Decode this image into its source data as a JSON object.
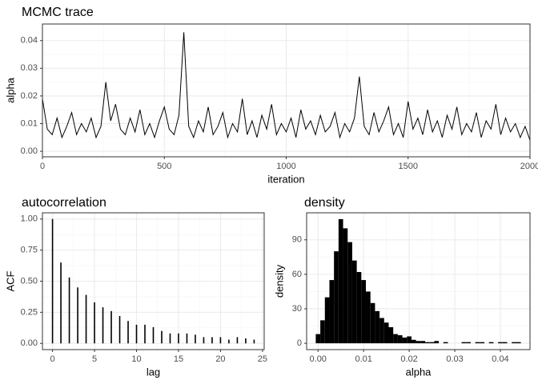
{
  "chart_data": [
    {
      "type": "line",
      "title": "MCMC trace",
      "x_label": "iteration",
      "y_label": "alpha",
      "color": "#000000",
      "grid": true,
      "x": [
        0,
        20,
        40,
        60,
        80,
        100,
        120,
        140,
        160,
        180,
        200,
        220,
        240,
        260,
        280,
        300,
        320,
        340,
        360,
        380,
        400,
        420,
        440,
        460,
        480,
        500,
        520,
        540,
        560,
        580,
        600,
        620,
        640,
        660,
        680,
        700,
        720,
        740,
        760,
        780,
        800,
        820,
        840,
        860,
        880,
        900,
        920,
        940,
        960,
        980,
        1000,
        1020,
        1040,
        1060,
        1080,
        1100,
        1120,
        1140,
        1160,
        1180,
        1200,
        1220,
        1240,
        1260,
        1280,
        1300,
        1320,
        1340,
        1360,
        1380,
        1400,
        1420,
        1440,
        1460,
        1480,
        1500,
        1520,
        1540,
        1560,
        1580,
        1600,
        1620,
        1640,
        1660,
        1680,
        1700,
        1720,
        1740,
        1760,
        1780,
        1800,
        1820,
        1840,
        1860,
        1880,
        1900,
        1920,
        1940,
        1960,
        1980,
        2000
      ],
      "values": [
        0.019,
        0.008,
        0.006,
        0.012,
        0.005,
        0.009,
        0.014,
        0.006,
        0.01,
        0.007,
        0.012,
        0.005,
        0.009,
        0.025,
        0.011,
        0.017,
        0.008,
        0.006,
        0.012,
        0.007,
        0.015,
        0.006,
        0.01,
        0.005,
        0.011,
        0.016,
        0.008,
        0.006,
        0.013,
        0.043,
        0.009,
        0.005,
        0.011,
        0.007,
        0.016,
        0.006,
        0.009,
        0.014,
        0.005,
        0.01,
        0.007,
        0.019,
        0.006,
        0.011,
        0.005,
        0.013,
        0.008,
        0.017,
        0.006,
        0.01,
        0.007,
        0.012,
        0.005,
        0.015,
        0.008,
        0.011,
        0.006,
        0.013,
        0.007,
        0.009,
        0.014,
        0.005,
        0.01,
        0.007,
        0.012,
        0.027,
        0.009,
        0.006,
        0.014,
        0.007,
        0.011,
        0.016,
        0.006,
        0.01,
        0.005,
        0.018,
        0.008,
        0.012,
        0.006,
        0.015,
        0.007,
        0.011,
        0.005,
        0.013,
        0.008,
        0.016,
        0.006,
        0.01,
        0.007,
        0.014,
        0.005,
        0.011,
        0.008,
        0.017,
        0.006,
        0.012,
        0.007,
        0.01,
        0.005,
        0.009,
        0.004
      ],
      "xlim": [
        0,
        2000
      ],
      "xticks": [
        0,
        500,
        1000,
        1500,
        2000
      ],
      "ylim": [
        -0.002,
        0.046
      ],
      "yticks": [
        {
          "value": 0,
          "label": "0.00"
        },
        {
          "value": 0.01,
          "label": "0.01"
        },
        {
          "value": 0.02,
          "label": "0.02"
        },
        {
          "value": 0.03,
          "label": "0.03"
        },
        {
          "value": 0.04,
          "label": "0.04"
        }
      ]
    },
    {
      "type": "bar",
      "title": "autocorrelation",
      "x_label": "lag",
      "y_label": "ACF",
      "color": "#000000",
      "grid": true,
      "x": [
        0,
        1,
        2,
        3,
        4,
        5,
        6,
        7,
        8,
        9,
        10,
        11,
        12,
        13,
        14,
        15,
        16,
        17,
        18,
        19,
        20,
        21,
        22,
        23,
        24
      ],
      "values": [
        1.0,
        0.65,
        0.53,
        0.45,
        0.39,
        0.33,
        0.29,
        0.26,
        0.22,
        0.18,
        0.15,
        0.15,
        0.13,
        0.1,
        0.08,
        0.08,
        0.08,
        0.07,
        0.05,
        0.05,
        0.05,
        0.03,
        0.05,
        0.04,
        0.03
      ],
      "xlim": [
        -1.2,
        25.2
      ],
      "xticks": [
        0,
        5,
        10,
        15,
        20,
        25
      ],
      "ylim": [
        -0.05,
        1.05
      ],
      "yticks": [
        {
          "value": 0,
          "label": "0.00"
        },
        {
          "value": 0.25,
          "label": "0.25"
        },
        {
          "value": 0.5,
          "label": "0.50"
        },
        {
          "value": 0.75,
          "label": "0.75"
        },
        {
          "value": 1,
          "label": "1.00"
        }
      ]
    },
    {
      "type": "histogram",
      "title": "density",
      "x_label": "alpha",
      "y_label": "density",
      "color": "#000000",
      "grid": true,
      "bins": [
        -0.0005,
        0.0005,
        0.0015,
        0.0025,
        0.0035,
        0.0045,
        0.0055,
        0.0065,
        0.0075,
        0.0085,
        0.0095,
        0.0105,
        0.0115,
        0.0125,
        0.0135,
        0.0145,
        0.0155,
        0.0165,
        0.0175,
        0.0185,
        0.0195,
        0.0205,
        0.0215,
        0.0225,
        0.0235,
        0.0245,
        0.0255,
        0.0265,
        0.0275,
        0.0285,
        0.0295,
        0.0305,
        0.0315,
        0.0325,
        0.0335,
        0.0345,
        0.0355,
        0.0365,
        0.0375,
        0.0385,
        0.0395,
        0.0405,
        0.0415,
        0.0425,
        0.0435,
        0.0445
      ],
      "values": [
        8,
        20,
        40,
        55,
        80,
        108,
        100,
        88,
        72,
        62,
        55,
        45,
        35,
        28,
        22,
        18,
        14,
        8,
        7,
        5,
        6,
        3,
        2,
        2,
        1,
        1,
        2,
        0,
        1,
        0,
        0,
        0,
        1,
        1,
        0,
        1,
        1,
        0,
        1,
        0,
        1,
        1,
        0,
        1,
        1
      ],
      "xlim": [
        -0.0025,
        0.0465
      ],
      "xticks": [
        {
          "value": 0,
          "label": "0.00"
        },
        {
          "value": 0.01,
          "label": "0.01"
        },
        {
          "value": 0.02,
          "label": "0.02"
        },
        {
          "value": 0.03,
          "label": "0.03"
        },
        {
          "value": 0.04,
          "label": "0.04"
        }
      ],
      "ylim": [
        -5.5,
        113.5
      ],
      "yticks": [
        0,
        30,
        60,
        90
      ]
    }
  ]
}
